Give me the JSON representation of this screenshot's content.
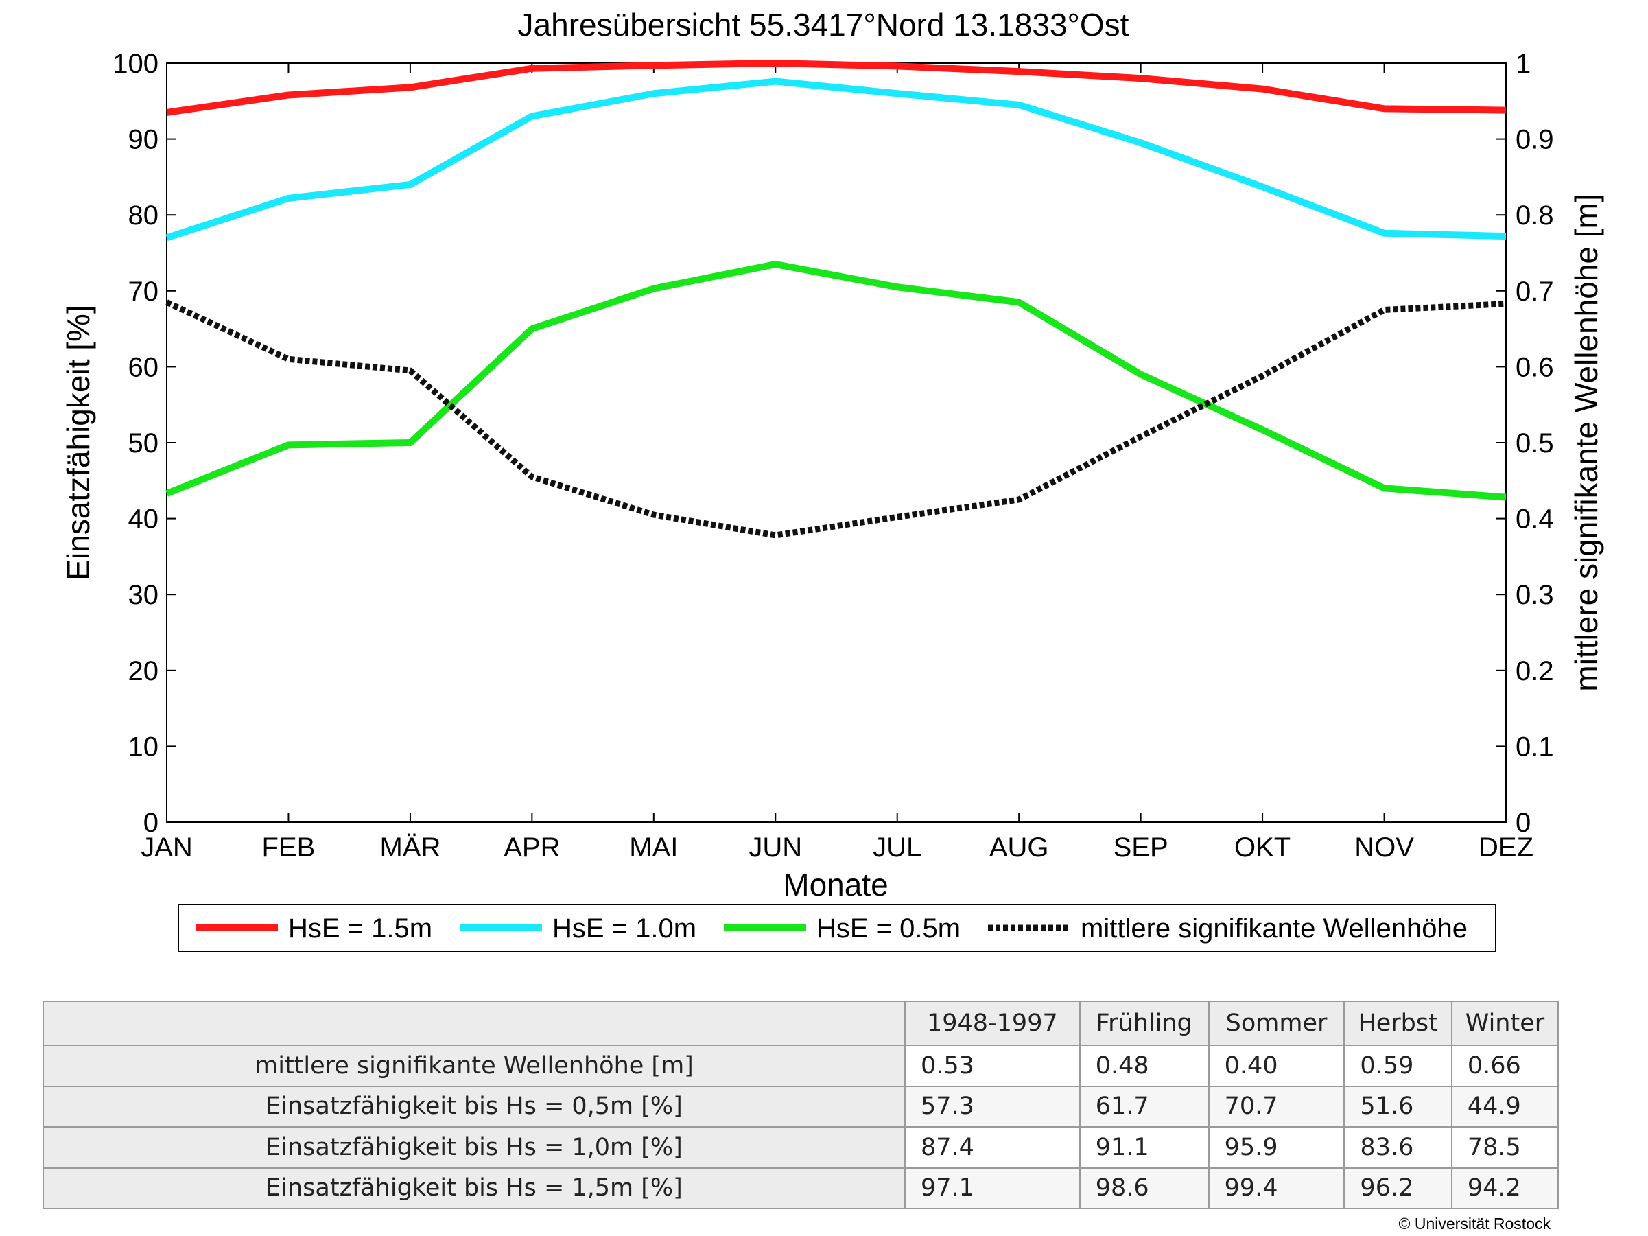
{
  "chart_data": {
    "type": "line",
    "title": "Jahresübersicht  55.3417°Nord  13.1833°Ost",
    "xlabel": "Monate",
    "ylabel": "Einsatzfähigkeit [%]",
    "y2label": "mittlere signifikante Wellenhöhe [m]",
    "categories": [
      "JAN",
      "FEB",
      "MÄR",
      "APR",
      "MAI",
      "JUN",
      "JUL",
      "AUG",
      "SEP",
      "OKT",
      "NOV",
      "DEZ"
    ],
    "ylim": [
      0,
      100
    ],
    "y2lim": [
      0,
      1
    ],
    "yticks": [
      "0",
      "10",
      "20",
      "30",
      "40",
      "50",
      "60",
      "70",
      "80",
      "90",
      "100"
    ],
    "y2ticks": [
      "0",
      "0.1",
      "0.2",
      "0.3",
      "0.4",
      "0.5",
      "0.6",
      "0.7",
      "0.8",
      "0.9",
      "1"
    ],
    "grid": false,
    "legend_position": "bottom",
    "series": [
      {
        "name": "HsE = 1.5m",
        "axis": "left",
        "color": "#ff1a1a",
        "style": "solid",
        "values": [
          93.5,
          95.8,
          96.8,
          99.3,
          99.7,
          100.0,
          99.6,
          98.9,
          98.0,
          96.6,
          94.0,
          93.8
        ]
      },
      {
        "name": "HsE = 1.0m",
        "axis": "left",
        "color": "#19e8ff",
        "style": "solid",
        "values": [
          77.0,
          82.2,
          84.0,
          93.0,
          96.0,
          97.6,
          96.0,
          94.5,
          89.5,
          83.7,
          77.6,
          77.2
        ]
      },
      {
        "name": "HsE = 0.5m",
        "axis": "left",
        "color": "#19e61a",
        "style": "solid",
        "values": [
          43.3,
          49.7,
          50.0,
          65.0,
          70.3,
          73.5,
          70.5,
          68.5,
          59.0,
          51.7,
          44.0,
          42.8
        ]
      },
      {
        "name": "mittlere signifikante Wellenhöhe",
        "axis": "right",
        "color": "#111111",
        "style": "dotted",
        "values": [
          0.685,
          0.61,
          0.595,
          0.455,
          0.405,
          0.378,
          0.402,
          0.425,
          0.508,
          0.588,
          0.675,
          0.683
        ]
      }
    ]
  },
  "table": {
    "headers": [
      "",
      "1948-1997",
      "Frühling",
      "Sommer",
      "Herbst",
      "Winter"
    ],
    "rows": [
      {
        "label": "mittlere signifikante Wellenhöhe [m]",
        "values": [
          "0.53",
          "0.48",
          "0.40",
          "0.59",
          "0.66"
        ]
      },
      {
        "label": "Einsatzfähigkeit bis Hs = 0,5m [%]",
        "values": [
          "57.3",
          "61.7",
          "70.7",
          "51.6",
          "44.9"
        ]
      },
      {
        "label": "Einsatzfähigkeit bis Hs = 1,0m [%]",
        "values": [
          "87.4",
          "91.1",
          "95.9",
          "83.6",
          "78.5"
        ]
      },
      {
        "label": "Einsatzfähigkeit bis Hs = 1,5m [%]",
        "values": [
          "97.1",
          "98.6",
          "99.4",
          "96.2",
          "94.2"
        ]
      }
    ]
  },
  "copyright": "© Universität Rostock"
}
